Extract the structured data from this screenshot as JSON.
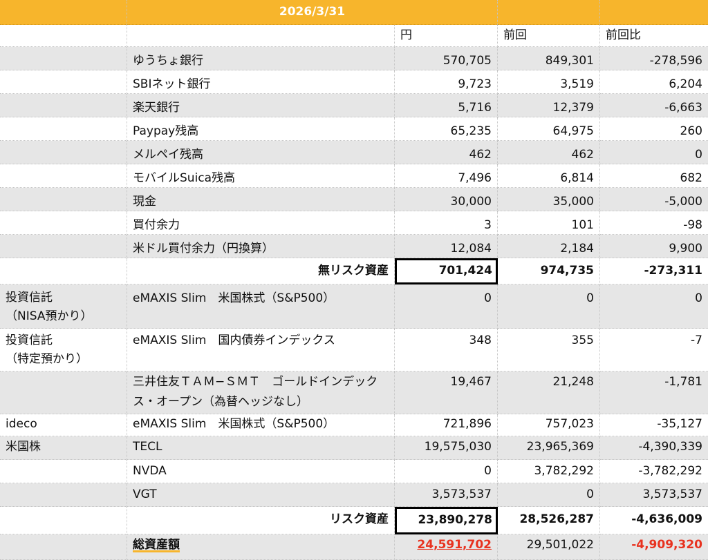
{
  "header": {
    "date": "2026/3/31"
  },
  "columns": {
    "yen": "円",
    "previous": "前回",
    "diff": "前回比"
  },
  "rows": [
    {
      "category": "",
      "name": "ゆうちょ銀行",
      "yen": "570,705",
      "prev": "849,301",
      "diff": "-278,596"
    },
    {
      "category": "",
      "name": "SBIネット銀行",
      "yen": "9,723",
      "prev": "3,519",
      "diff": "6,204"
    },
    {
      "category": "",
      "name": "楽天銀行",
      "yen": "5,716",
      "prev": "12,379",
      "diff": "-6,663"
    },
    {
      "category": "",
      "name": "Paypay残高",
      "yen": "65,235",
      "prev": "64,975",
      "diff": "260"
    },
    {
      "category": "",
      "name": "メルペイ残高",
      "yen": "462",
      "prev": "462",
      "diff": "0"
    },
    {
      "category": "",
      "name": "モバイルSuica残高",
      "yen": "7,496",
      "prev": "6,814",
      "diff": "682"
    },
    {
      "category": "",
      "name": "現金",
      "yen": "30,000",
      "prev": "35,000",
      "diff": "-5,000"
    },
    {
      "category": "",
      "name": "買付余力",
      "yen": "3",
      "prev": "101",
      "diff": "-98"
    },
    {
      "category": "",
      "name": "米ドル買付余力（円換算）",
      "yen": "12,084",
      "prev": "2,184",
      "diff": "9,900"
    },
    {
      "category": "",
      "name": "無リスク資産",
      "yen": "701,424",
      "prev": "974,735",
      "diff": "-273,311"
    },
    {
      "category": "投資信託\n（NISA預かり）",
      "name": "eMAXIS Slim　米国株式（S&P500）",
      "yen": "0",
      "prev": "0",
      "diff": "0"
    },
    {
      "category": "投資信託\n（特定預かり）",
      "name": "eMAXIS Slim　国内債券インデックス",
      "yen": "348",
      "prev": "355",
      "diff": "-7"
    },
    {
      "category": "",
      "name": "三井住友ＴＡＭ−ＳＭＴ　ゴールドインデックス・オープン（為替ヘッジなし）",
      "yen": "19,467",
      "prev": "21,248",
      "diff": "-1,781"
    },
    {
      "category": "ideco",
      "name": "eMAXIS Slim　米国株式（S&P500）",
      "yen": "721,896",
      "prev": "757,023",
      "diff": "-35,127"
    },
    {
      "category": "米国株",
      "name": "TECL",
      "yen": "19,575,030",
      "prev": "23,965,369",
      "diff": "-4,390,339"
    },
    {
      "category": "",
      "name": "NVDA",
      "yen": "0",
      "prev": "3,782,292",
      "diff": "-3,782,292"
    },
    {
      "category": "",
      "name": "VGT",
      "yen": "3,573,537",
      "prev": "0",
      "diff": "3,573,537"
    },
    {
      "category": "",
      "name": "リスク資産",
      "yen": "23,890,278",
      "prev": "28,526,287",
      "diff": "-4,636,009"
    },
    {
      "category": "",
      "name": "総資産額",
      "yen": "24,591,702",
      "prev": "29,501,022",
      "diff": "-4,909,320"
    }
  ]
}
